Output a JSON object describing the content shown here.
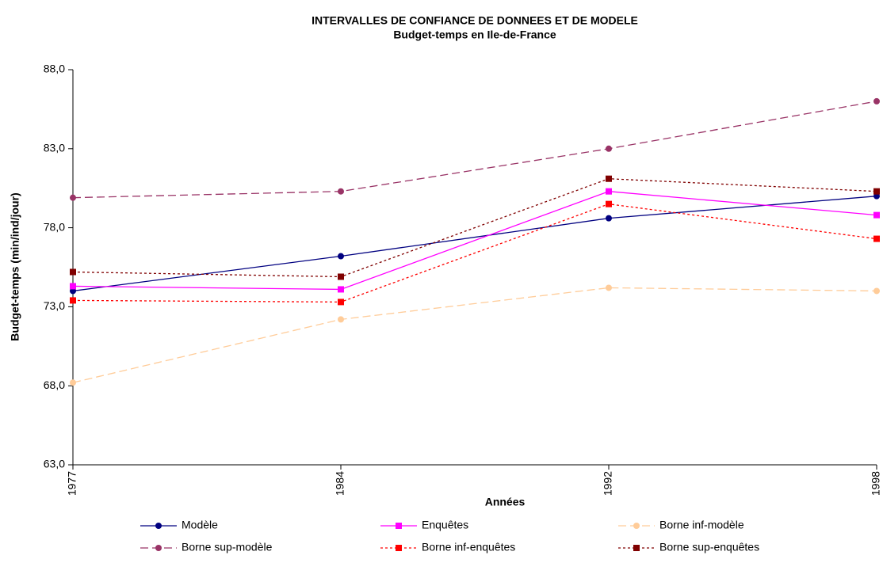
{
  "chart_data": {
    "type": "line",
    "title": "INTERVALLES DE CONFIANCE DE DONNEES ET DE MODELE",
    "subtitle": "Budget-temps en Ile-de-France",
    "x_label": "Années",
    "y_label": "Budget-temps (min/ind/jour)",
    "categories": [
      "1977",
      "1984",
      "1992",
      "1998"
    ],
    "ylim": [
      63,
      88
    ],
    "yticks": [
      {
        "value": 63,
        "label": "63,0"
      },
      {
        "value": 68,
        "label": "68,0"
      },
      {
        "value": 73,
        "label": "73,0"
      },
      {
        "value": 78,
        "label": "78,0"
      },
      {
        "value": 83,
        "label": "83,0"
      },
      {
        "value": 88,
        "label": "88,0"
      }
    ],
    "grid": false,
    "series": [
      {
        "name": "Modèle",
        "color": "#000080",
        "marker": "circle",
        "dash": "solid",
        "values": [
          74.0,
          76.2,
          78.6,
          80.0
        ]
      },
      {
        "name": "Enquêtes",
        "color": "#ff00ff",
        "marker": "square",
        "dash": "solid",
        "values": [
          74.3,
          74.1,
          80.3,
          78.8
        ]
      },
      {
        "name": "Borne inf-modèle",
        "color": "#ffcc99",
        "marker": "circle",
        "dash": "dashed",
        "values": [
          68.2,
          72.2,
          74.2,
          74.0
        ]
      },
      {
        "name": "Borne sup-modèle",
        "color": "#993366",
        "marker": "circle",
        "dash": "dashed",
        "values": [
          79.9,
          80.3,
          83.0,
          86.0
        ]
      },
      {
        "name": "Borne inf-enquêtes",
        "color": "#ff0000",
        "marker": "square",
        "dash": "dotted",
        "values": [
          73.4,
          73.3,
          79.5,
          77.3
        ]
      },
      {
        "name": "Borne sup-enquêtes",
        "color": "#800000",
        "marker": "square",
        "dash": "dotted",
        "values": [
          75.2,
          74.9,
          81.1,
          80.3
        ]
      }
    ]
  }
}
